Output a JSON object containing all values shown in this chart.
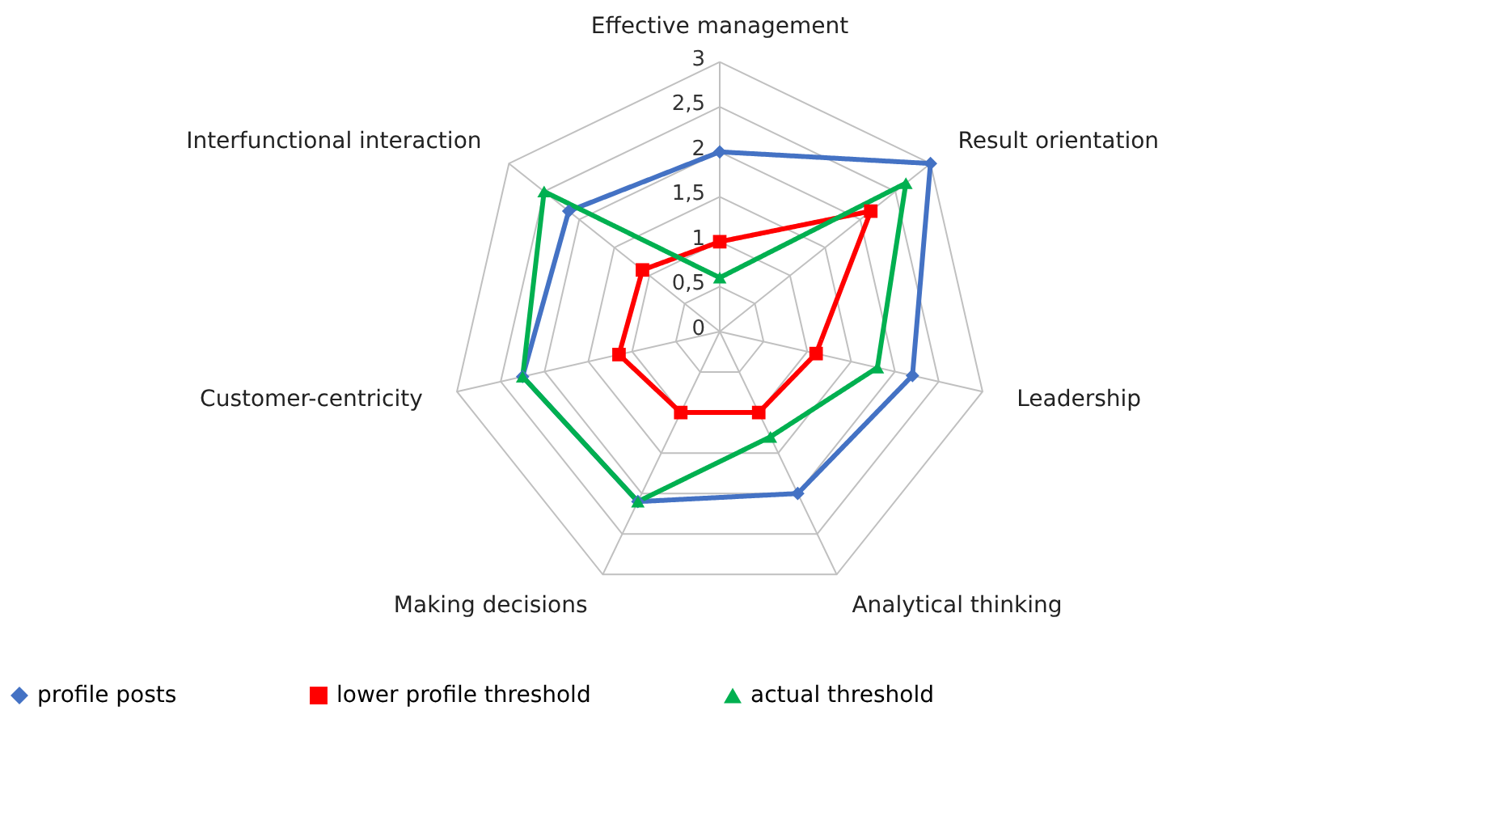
{
  "chart_data": {
    "type": "radar",
    "categories": [
      "Effective management",
      "Result orientation",
      "Leadership",
      "Analytical thinking",
      "Making decisions",
      "Customer-centricity",
      "Interfunctional interaction"
    ],
    "series": [
      {
        "name": "profile posts",
        "color": "#4472c4",
        "marker": "diamond",
        "values": [
          2,
          3,
          2.2,
          2,
          2.1,
          2.25,
          2.15
        ]
      },
      {
        "name": "lower profile threshold",
        "color": "#ff0000",
        "marker": "square",
        "values": [
          1,
          2.15,
          1.1,
          1,
          1,
          1.15,
          1.1
        ]
      },
      {
        "name": "actual threshold",
        "color": "#00b050",
        "marker": "triangle",
        "values": [
          0.6,
          2.65,
          1.8,
          1.3,
          2.1,
          2.25,
          2.5
        ]
      }
    ],
    "ylim": [
      0,
      3
    ],
    "yticks": [
      0,
      {
        "value": 0.5,
        "label": "0,5"
      },
      1,
      {
        "value": 1.5,
        "label": "1,5"
      },
      2,
      {
        "value": 2.5,
        "label": "2,5"
      },
      3
    ],
    "grid": true,
    "legend": "bottom",
    "line_style": "solid"
  }
}
